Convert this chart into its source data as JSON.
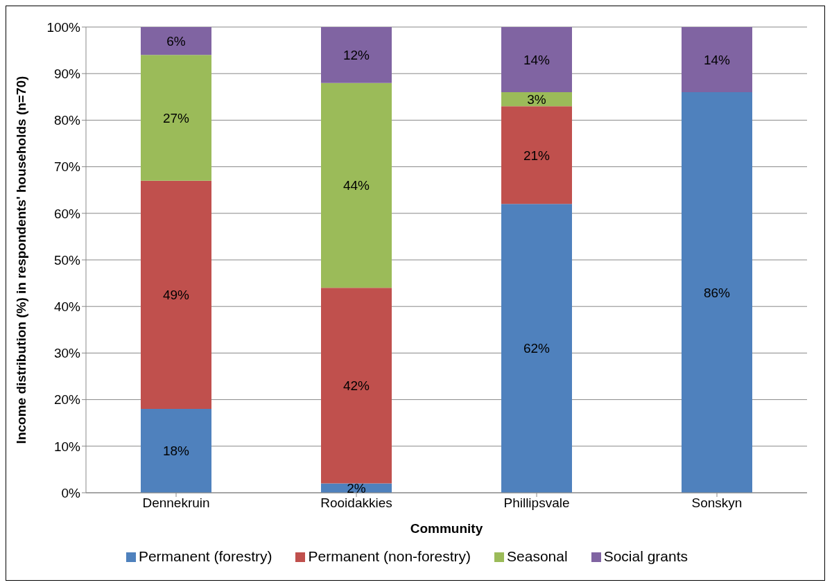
{
  "chart_data": {
    "type": "bar",
    "stacked": true,
    "xlabel": "Community",
    "ylabel": "Income distribution (%) in respondents' households (n=70)",
    "categories": [
      "Dennekruin",
      "Rooidakkies",
      "Phillipsvale",
      "Sonskyn"
    ],
    "series": [
      {
        "name": "Permanent (forestry)",
        "color": "#4f81bd",
        "values": [
          18,
          2,
          62,
          86
        ],
        "value_labels": [
          "18%",
          "2%",
          "62%",
          "86%"
        ]
      },
      {
        "name": "Permanent (non-forestry)",
        "color": "#c0504d",
        "values": [
          49,
          42,
          21,
          null
        ],
        "value_labels": [
          "49%",
          "42%",
          "21%",
          null
        ]
      },
      {
        "name": "Seasonal",
        "color": "#9bbb59",
        "values": [
          27,
          44,
          3,
          null
        ],
        "value_labels": [
          "27%",
          "44%",
          "3%",
          null
        ]
      },
      {
        "name": "Social grants",
        "color": "#8064a2",
        "values": [
          6,
          12,
          14,
          14
        ],
        "value_labels": [
          "6%",
          "12%",
          "14%",
          "14%"
        ]
      }
    ],
    "ylim": [
      0,
      100
    ],
    "yticks": [
      {
        "value": 0,
        "label": "0%"
      },
      {
        "value": 10,
        "label": "10%"
      },
      {
        "value": 20,
        "label": "20%"
      },
      {
        "value": 30,
        "label": "30%"
      },
      {
        "value": 40,
        "label": "40%"
      },
      {
        "value": 50,
        "label": "50%"
      },
      {
        "value": 60,
        "label": "60%"
      },
      {
        "value": 70,
        "label": "70%"
      },
      {
        "value": 80,
        "label": "80%"
      },
      {
        "value": 90,
        "label": "90%"
      },
      {
        "value": 100,
        "label": "100%"
      }
    ],
    "grid": "y",
    "legend": "bottom"
  }
}
